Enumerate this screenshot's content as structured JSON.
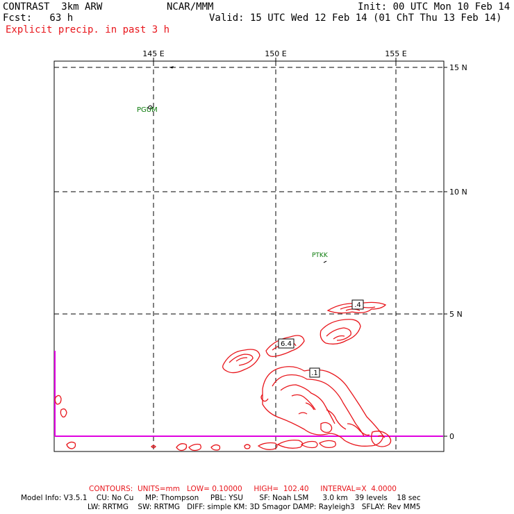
{
  "header": {
    "line1_left": "CONTRAST  3km ARW",
    "line1_center": "NCAR/MMM",
    "line1_right": "Init: 00 UTC Mon 10 Feb 14",
    "line2_left": "Fcst:   63 h",
    "line2_right": "Valid: 15 UTC Wed 12 Feb 14 (01 ChT Thu 13 Feb 14)",
    "line3": "Explicit precip. in past 3 h"
  },
  "map": {
    "lon_labels": [
      "145 E",
      "150 E",
      "155 E"
    ],
    "lat_labels": [
      "15 N",
      "10 N",
      "5 N",
      "0"
    ],
    "stations": [
      "PGUM",
      "PTKK"
    ],
    "contour_labels": [
      ".4",
      "6.4",
      ".1"
    ],
    "colors": {
      "contour": "#e8151b",
      "boundary": "#e000e0",
      "station": "#0a7a0a",
      "grid": "#000000"
    }
  },
  "footer": {
    "contour_info": "CONTOURS:  UNITS=mm   LOW= 0.10000     HIGH=  102.40     INTERVAL=X  4.0000",
    "model_info_1": "Model Info: V3.5.1    CU: No Cu     MP: Thompson     PBL: YSU       SF: Noah LSM      3.0 km   39 levels    18 sec",
    "model_info_2": "LW: RRTMG    SW: RRTMG   DIFF: simple KM: 3D Smagor DAMP: Rayleigh3   SFLAY: Rev MM5"
  }
}
